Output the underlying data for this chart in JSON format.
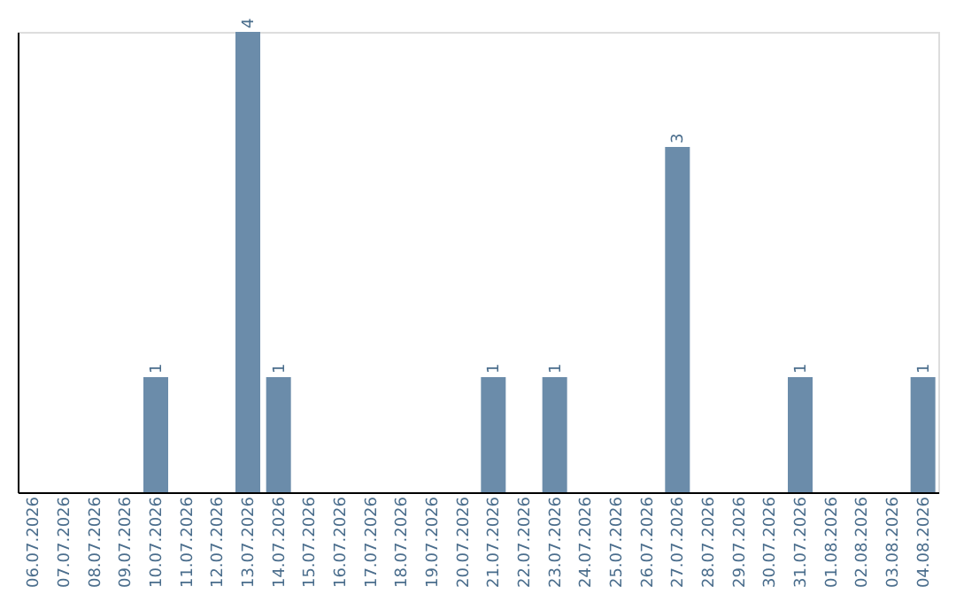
{
  "chart_data": {
    "type": "bar",
    "categories": [
      "06.07.2026",
      "07.07.2026",
      "08.07.2026",
      "09.07.2026",
      "10.07.2026",
      "11.07.2026",
      "12.07.2026",
      "13.07.2026",
      "14.07.2026",
      "15.07.2026",
      "16.07.2026",
      "17.07.2026",
      "18.07.2026",
      "19.07.2026",
      "20.07.2026",
      "21.07.2026",
      "22.07.2026",
      "23.07.2026",
      "24.07.2026",
      "25.07.2026",
      "26.07.2026",
      "27.07.2026",
      "28.07.2026",
      "29.07.2026",
      "30.07.2026",
      "31.07.2026",
      "01.08.2026",
      "02.08.2026",
      "03.08.2026",
      "04.08.2026"
    ],
    "values": [
      null,
      null,
      null,
      null,
      1,
      null,
      null,
      4,
      1,
      null,
      null,
      null,
      null,
      null,
      null,
      1,
      null,
      1,
      null,
      null,
      null,
      3,
      null,
      null,
      null,
      1,
      null,
      null,
      null,
      1
    ],
    "color": "#6b8caa",
    "data_labels": true,
    "grid": false
  }
}
